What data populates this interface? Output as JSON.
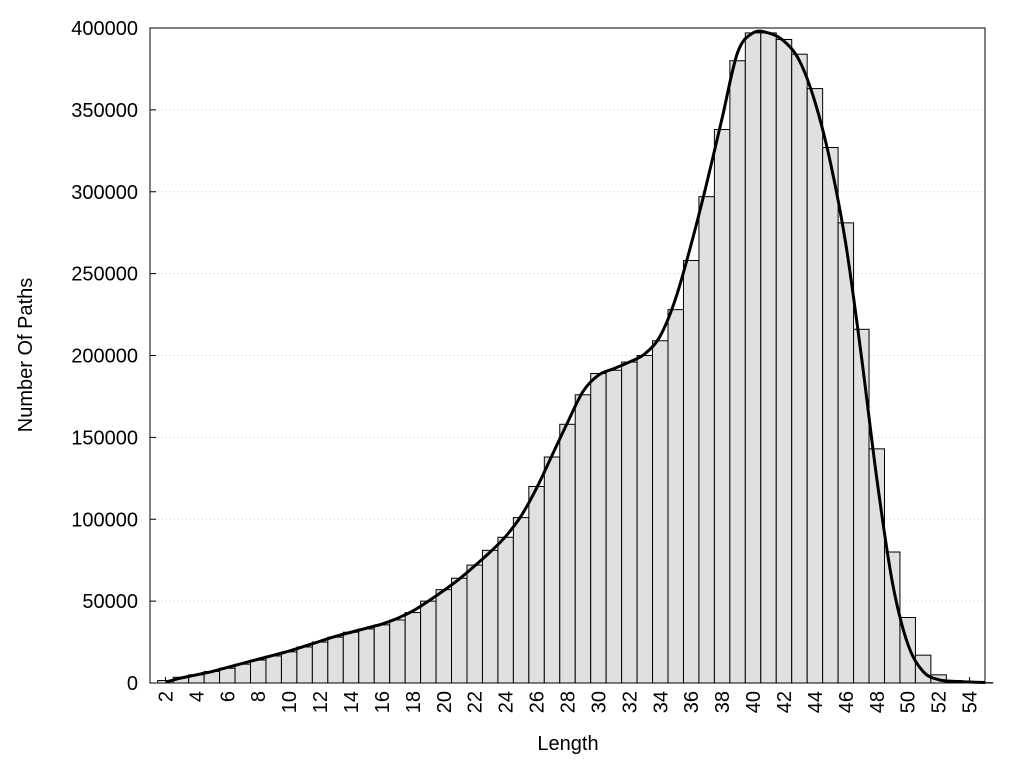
{
  "chart_data": {
    "type": "bar",
    "x_label": "Length",
    "y_label": "Number Of Paths",
    "x": [
      2,
      3,
      4,
      5,
      6,
      7,
      8,
      9,
      10,
      11,
      12,
      13,
      14,
      15,
      16,
      17,
      18,
      19,
      20,
      21,
      22,
      23,
      24,
      25,
      26,
      27,
      28,
      29,
      30,
      31,
      32,
      33,
      34,
      35,
      36,
      37,
      38,
      39,
      40,
      41,
      42,
      43,
      44,
      45,
      46,
      47,
      48,
      49,
      50,
      51,
      52,
      53,
      54,
      55
    ],
    "values": [
      1500,
      3500,
      5000,
      7000,
      9000,
      11500,
      14000,
      16500,
      19000,
      22000,
      25000,
      28000,
      31000,
      33000,
      35500,
      38500,
      43000,
      50000,
      57000,
      64000,
      72000,
      81000,
      89000,
      101000,
      120000,
      138000,
      158000,
      176000,
      189000,
      191000,
      196000,
      200000,
      209000,
      228000,
      258000,
      297000,
      338000,
      380000,
      397000,
      397000,
      393000,
      384000,
      363000,
      327000,
      281000,
      216000,
      143000,
      80000,
      40000,
      17000,
      5000,
      1500,
      500,
      200
    ],
    "color": "#e0e0e0",
    "curve": {
      "color": "#000000",
      "x": [
        2,
        3,
        4,
        5,
        6,
        7,
        8,
        9,
        10,
        11,
        12,
        13,
        14,
        15,
        16,
        17,
        18,
        19,
        20,
        21,
        22,
        23,
        24,
        25,
        26,
        27,
        28,
        29,
        30,
        31,
        32,
        33,
        34,
        35,
        36,
        37,
        38,
        39,
        40,
        41,
        42,
        43,
        44,
        45,
        46,
        47,
        48,
        49,
        50,
        51,
        52,
        53,
        54,
        55
      ],
      "values": [
        500,
        3000,
        5000,
        7000,
        9500,
        12000,
        14500,
        17000,
        19500,
        22500,
        25500,
        28500,
        31000,
        33500,
        36000,
        39500,
        44000,
        50000,
        56500,
        63500,
        71500,
        80000,
        89500,
        102000,
        119000,
        139000,
        159000,
        178000,
        188000,
        192000,
        196000,
        201000,
        212000,
        235000,
        268000,
        305000,
        345000,
        385000,
        397000,
        397000,
        392000,
        380000,
        355000,
        318000,
        268000,
        200000,
        125000,
        62000,
        24000,
        7000,
        2000,
        1000,
        600,
        300
      ]
    },
    "xlim": [
      1,
      55
    ],
    "ylim": [
      0,
      400000
    ],
    "xticks": [
      2,
      4,
      6,
      8,
      10,
      12,
      14,
      16,
      18,
      20,
      22,
      24,
      26,
      28,
      30,
      32,
      34,
      36,
      38,
      40,
      42,
      44,
      46,
      48,
      50,
      52,
      54
    ],
    "yticks": [
      0,
      50000,
      100000,
      150000,
      200000,
      250000,
      300000,
      350000,
      400000
    ],
    "grid": true
  }
}
